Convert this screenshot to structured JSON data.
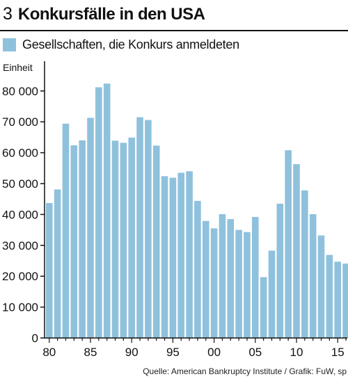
{
  "header": {
    "figure_number": "3",
    "title": "Konkursfälle in den USA"
  },
  "legend": {
    "label": "Gesellschaften, die Konkurs anmeldeten",
    "color": "#8fc1dc"
  },
  "source": "Quelle: American Bankruptcy Institute / Grafik: FuW, sp",
  "chart_data": {
    "type": "bar",
    "title": "Konkursfälle in den USA",
    "xlabel": "",
    "ylabel": "Einheit",
    "ylim": [
      0,
      85000
    ],
    "yticks": [
      0,
      10000,
      20000,
      30000,
      40000,
      50000,
      60000,
      70000,
      80000
    ],
    "ytick_labels": [
      "0",
      "10 000",
      "20 000",
      "30 000",
      "40 000",
      "50 000",
      "60 000",
      "70 000",
      "80 000"
    ],
    "xtick_labels": [
      "80",
      "85",
      "90",
      "95",
      "00",
      "05",
      "10",
      "15"
    ],
    "xtick_years": [
      1980,
      1985,
      1990,
      1995,
      2000,
      2005,
      2010,
      2015
    ],
    "grid": false,
    "categories": [
      1980,
      1981,
      1982,
      1983,
      1984,
      1985,
      1986,
      1987,
      1988,
      1989,
      1990,
      1991,
      1992,
      1993,
      1994,
      1995,
      1996,
      1997,
      1998,
      1999,
      2000,
      2001,
      2002,
      2003,
      2004,
      2005,
      2006,
      2007,
      2008,
      2009,
      2010,
      2011,
      2012,
      2013,
      2014,
      2015,
      2016
    ],
    "series": [
      {
        "name": "Gesellschaften, die Konkurs anmeldeten",
        "color": "#8fc1dc",
        "values": [
          43700,
          48100,
          69400,
          62400,
          64000,
          71300,
          81200,
          82400,
          63900,
          63200,
          64900,
          71500,
          70600,
          62300,
          52400,
          51900,
          53500,
          54000,
          44400,
          37900,
          35500,
          40100,
          38500,
          35000,
          34300,
          39200,
          19700,
          28300,
          43500,
          60800,
          56300,
          47800,
          40100,
          33200,
          26900,
          24700,
          24100
        ]
      }
    ]
  }
}
